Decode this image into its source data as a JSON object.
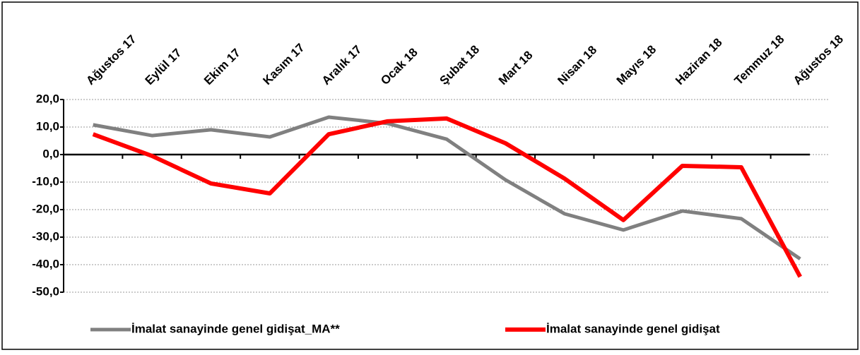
{
  "chart_data": {
    "type": "line",
    "categories": [
      "Ağustos 17",
      "Eylül 17",
      "Ekim 17",
      "Kasım 17",
      "Aralık 17",
      "Ocak 18",
      "Şubat 18",
      "Mart 18",
      "Nisan 18",
      "Mayıs 18",
      "Haziran 18",
      "Temmuz 18",
      "Ağustos 18"
    ],
    "series": [
      {
        "name": "İmalat sanayinde genel gidişat_MA**",
        "color": "#808080",
        "values": [
          10.8,
          6.9,
          9.0,
          6.4,
          13.6,
          11.3,
          5.6,
          -9.2,
          -21.5,
          -27.4,
          -20.5,
          -23.3,
          -37.9
        ]
      },
      {
        "name": "İmalat sanayinde genel gidişat",
        "color": "#ff0000",
        "values": [
          7.4,
          -0.5,
          -10.5,
          -14.1,
          7.4,
          12.1,
          13.1,
          4.1,
          -8.7,
          -23.8,
          -4.1,
          -4.6,
          -44.4
        ]
      }
    ],
    "ylim": [
      -50,
      20
    ],
    "yticks": [
      {
        "value": -50,
        "label": "-50,0"
      },
      {
        "value": -40,
        "label": "-40,0"
      },
      {
        "value": -30,
        "label": "-30,0"
      },
      {
        "value": -20,
        "label": "-20,0"
      },
      {
        "value": -10,
        "label": "-10,0"
      },
      {
        "value": 0,
        "label": "0,0"
      },
      {
        "value": 10,
        "label": "10,0"
      },
      {
        "value": 20,
        "label": "20,0"
      }
    ],
    "grid": true,
    "legend": "bottom"
  }
}
